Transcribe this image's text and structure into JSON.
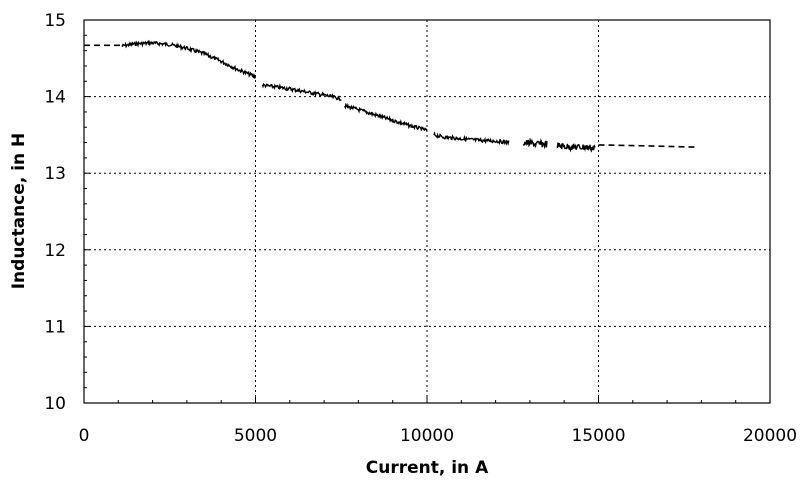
{
  "chart_data": {
    "type": "line",
    "title": "",
    "xlabel": "Current, in A",
    "ylabel": "Inductance, in H",
    "xlim": [
      0,
      20000
    ],
    "ylim": [
      10,
      15
    ],
    "x_ticks": [
      0,
      5000,
      10000,
      15000,
      20000
    ],
    "y_ticks": [
      10,
      11,
      12,
      13,
      14,
      15
    ],
    "grid": true,
    "legend": "none",
    "series": [
      {
        "style": "measured-segments",
        "segments": [
          {
            "x": [
              1100,
              1500,
              2000,
              2500,
              3000,
              3500,
              4000,
              4500,
              5000
            ],
            "y": [
              14.66,
              14.69,
              14.7,
              14.68,
              14.63,
              14.56,
              14.46,
              14.35,
              14.26
            ]
          },
          {
            "x": [
              5200,
              6000,
              6500,
              7000,
              7500
            ],
            "y": [
              14.15,
              14.1,
              14.06,
              14.02,
              13.97
            ]
          },
          {
            "x": [
              7600,
              8000,
              8500,
              9000,
              9500,
              10000
            ],
            "y": [
              13.88,
              13.83,
              13.76,
              13.69,
              13.62,
              13.56
            ]
          },
          {
            "x": [
              10200,
              10500,
              11000,
              11500,
              12000,
              12400
            ],
            "y": [
              13.5,
              13.47,
              13.45,
              13.43,
              13.42,
              13.4
            ]
          },
          {
            "x": [
              12800,
              13000,
              13200,
              13500
            ],
            "y": [
              13.4,
              13.39,
              13.38,
              13.38
            ]
          },
          {
            "x": [
              13800,
              14000,
              14300,
              14600,
              14900
            ],
            "y": [
              13.36,
              13.35,
              13.34,
              13.34,
              13.33
            ]
          }
        ]
      },
      {
        "style": "dashed-fit",
        "segments": [
          {
            "x": [
              0,
              1100
            ],
            "y": [
              14.67,
              14.67
            ]
          },
          {
            "x": [
              15000,
              16000,
              17000,
              17900
            ],
            "y": [
              13.37,
              13.36,
              13.35,
              13.34
            ]
          }
        ]
      }
    ]
  }
}
